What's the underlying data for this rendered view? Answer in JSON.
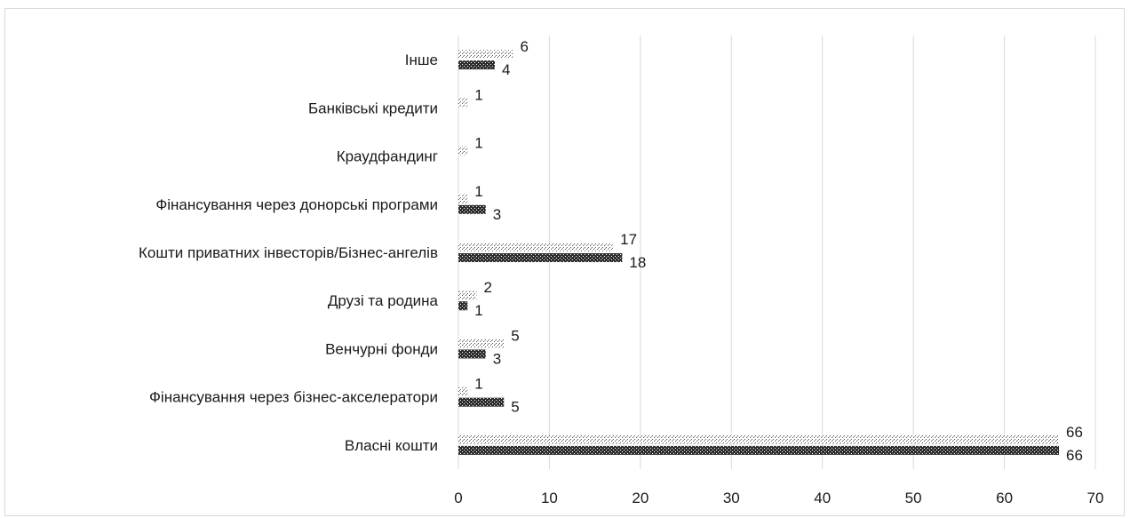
{
  "chart_data": {
    "type": "bar",
    "orientation": "horizontal",
    "categories": [
      "Власні кошти",
      "Фінансування через бізнес-акселератори",
      "Венчурні фонди",
      "Друзі та родина",
      "Кошти приватних інвесторів/Бізнес-ангелів",
      "Фінансування через донорські програми",
      "Краудфандинг",
      "Банківські кредити",
      "Інше"
    ],
    "series": [
      {
        "values": [
          66,
          5,
          3,
          1,
          18,
          3,
          null,
          null,
          4
        ],
        "color": "#3a3a3a",
        "pattern": "dark-dotted"
      },
      {
        "values": [
          66,
          1,
          5,
          2,
          17,
          1,
          1,
          1,
          6
        ],
        "color": "#b0b0b0",
        "pattern": "light-dotted"
      }
    ],
    "xlim": [
      0,
      70
    ],
    "xticks": [
      0,
      10,
      20,
      30,
      40,
      50,
      60,
      70
    ],
    "grid": "vertical",
    "legend": "none",
    "title": "",
    "xlabel": "",
    "ylabel": ""
  }
}
